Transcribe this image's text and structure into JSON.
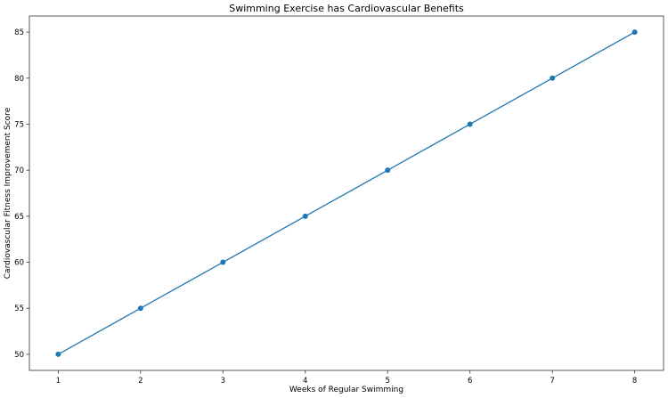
{
  "chart_data": {
    "type": "line",
    "title": "Swimming Exercise has Cardiovascular Benefits",
    "xlabel": "Weeks of Regular Swimming",
    "ylabel": "Cardiovascular Fitness Improvement Score",
    "x": [
      1,
      2,
      3,
      4,
      5,
      6,
      7,
      8
    ],
    "series": [
      {
        "values": [
          50,
          55,
          60,
          65,
          70,
          75,
          80,
          85
        ],
        "color": "#1f77b4",
        "marker": "circle"
      }
    ],
    "xticks": [
      1,
      2,
      3,
      4,
      5,
      6,
      7,
      8
    ],
    "yticks": [
      50,
      55,
      60,
      65,
      70,
      75,
      80,
      85
    ],
    "xlim": [
      0.65,
      8.35
    ],
    "ylim": [
      48.25,
      86.75
    ],
    "grid": false
  }
}
